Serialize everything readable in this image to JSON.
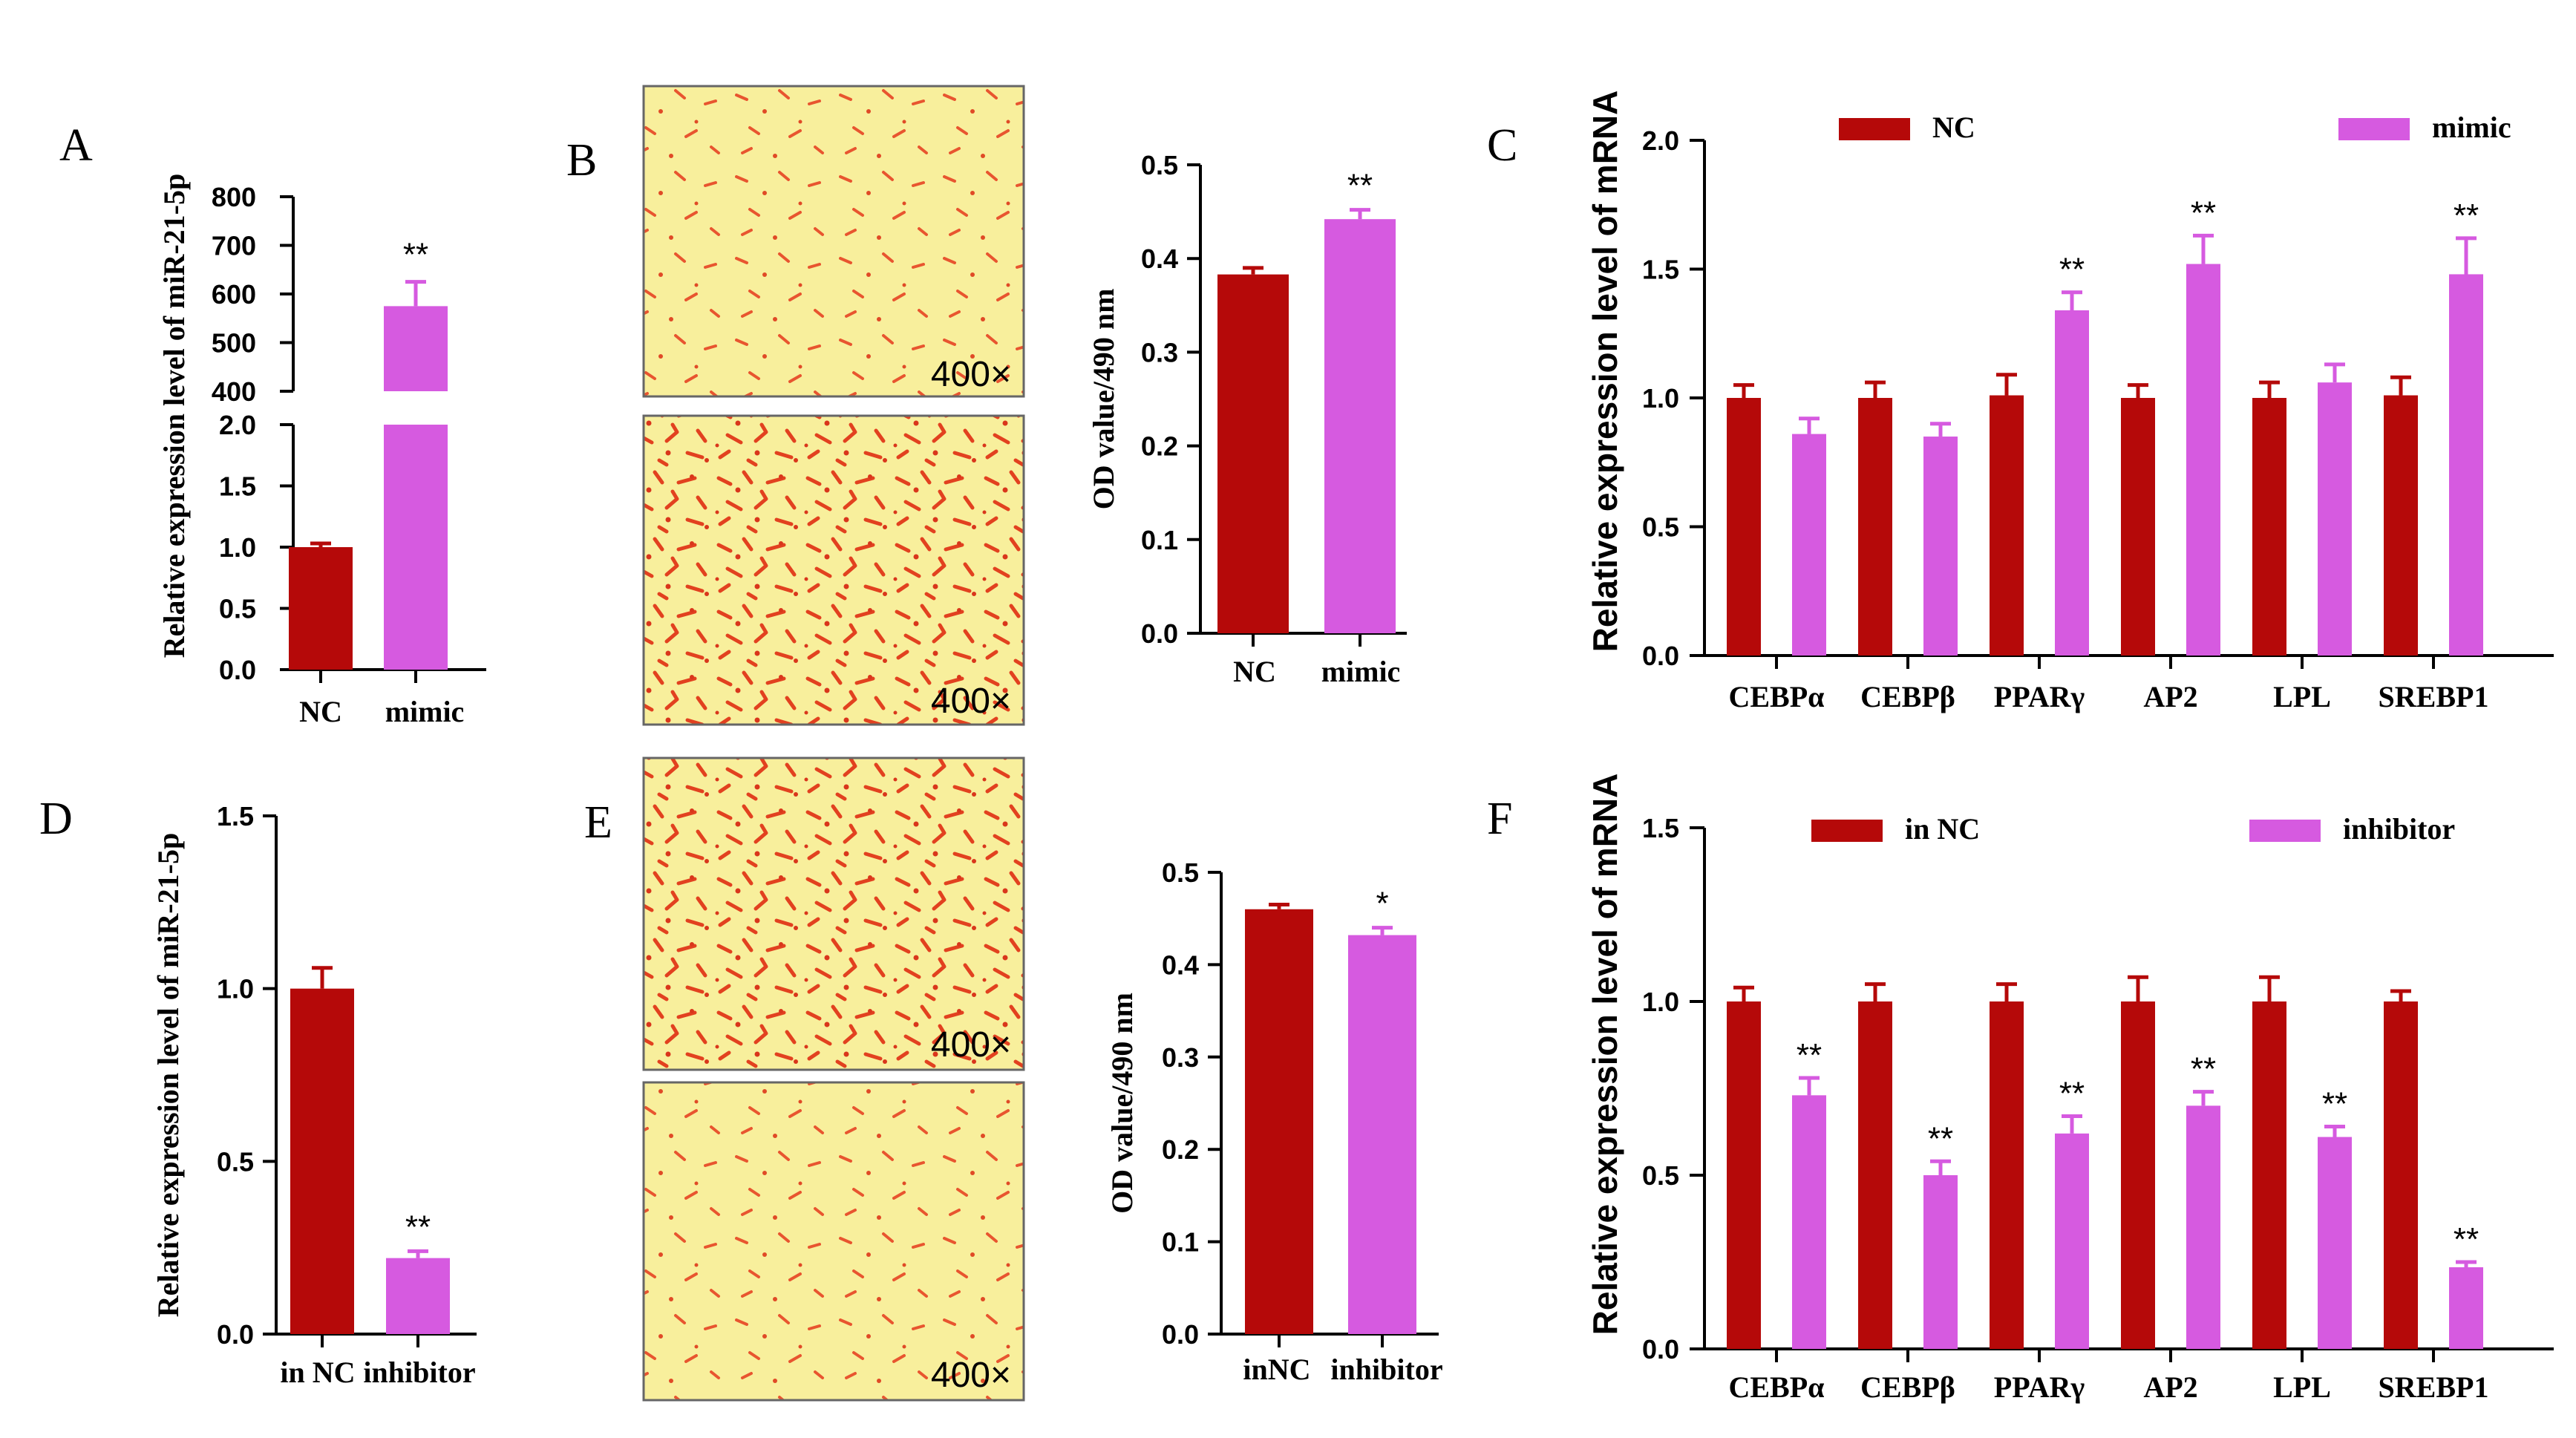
{
  "colors": {
    "nc": "#b50909",
    "treat": "#d65ae0",
    "stain_bg": "#f8ef9c",
    "stain_dot": "#e2411f"
  },
  "images": {
    "B_top": {
      "magnification": "400×",
      "density": 0.55
    },
    "B_bottom": {
      "magnification": "400×",
      "density": 1.0
    },
    "E_top": {
      "magnification": "400×",
      "density": 0.9
    },
    "E_bottom": {
      "magnification": "400×",
      "density": 0.6
    }
  },
  "chart_data": [
    {
      "id": "A",
      "letter": "A",
      "type": "bar",
      "title": "",
      "xlabel": "",
      "ylabel": "Relative expression level of miR-21-5p",
      "categories": [
        "NC",
        "mimic"
      ],
      "values": [
        1.0,
        575
      ],
      "errors": [
        0.03,
        50
      ],
      "significance": [
        "",
        "**"
      ],
      "broken_axis": true,
      "ylim_lower": [
        0,
        2.0
      ],
      "ylim_upper": [
        400,
        800
      ],
      "yticks_lower": [
        "0.0",
        "0.5",
        "1.0",
        "1.5",
        "2.0"
      ],
      "yticks_upper": [
        "400",
        "500",
        "600",
        "700",
        "800"
      ]
    },
    {
      "id": "B",
      "letter": "B",
      "type": "bar",
      "title": "",
      "xlabel": "",
      "ylabel": "OD value/490 nm",
      "categories": [
        "NC",
        "mimic"
      ],
      "values": [
        0.383,
        0.442
      ],
      "errors": [
        0.007,
        0.01
      ],
      "significance": [
        "",
        "**"
      ],
      "ylim": [
        0,
        0.5
      ],
      "yticks": [
        "0.0",
        "0.1",
        "0.2",
        "0.3",
        "0.4",
        "0.5"
      ]
    },
    {
      "id": "C",
      "letter": "C",
      "type": "bar",
      "title": "",
      "xlabel": "",
      "ylabel": "Relative expression level of mRNA",
      "categories": [
        "CEBPα",
        "CEBPβ",
        "PPARγ",
        "AP2",
        "LPL",
        "SREBP1"
      ],
      "series": [
        {
          "name": "NC",
          "values": [
            1.0,
            1.0,
            1.01,
            1.0,
            1.0,
            1.01
          ],
          "errors": [
            0.05,
            0.06,
            0.08,
            0.05,
            0.06,
            0.07
          ]
        },
        {
          "name": "mimic",
          "values": [
            0.86,
            0.85,
            1.34,
            1.52,
            1.06,
            1.48
          ],
          "errors": [
            0.06,
            0.05,
            0.07,
            0.11,
            0.07,
            0.14
          ]
        }
      ],
      "significance": [
        "",
        "",
        "**",
        "**",
        "",
        "**"
      ],
      "ylim": [
        0,
        2.0
      ],
      "yticks": [
        "0.0",
        "0.5",
        "1.0",
        "1.5",
        "2.0"
      ],
      "legend": "top"
    },
    {
      "id": "D",
      "letter": "D",
      "type": "bar",
      "title": "",
      "xlabel": "",
      "ylabel": "Relative expression level of miR-21-5p",
      "categories": [
        "in NC",
        "inhibitor"
      ],
      "values": [
        1.0,
        0.22
      ],
      "errors": [
        0.06,
        0.02
      ],
      "significance": [
        "",
        "**"
      ],
      "ylim": [
        0,
        1.5
      ],
      "yticks": [
        "0.0",
        "0.5",
        "1.0",
        "1.5"
      ]
    },
    {
      "id": "E",
      "letter": "E",
      "type": "bar",
      "title": "",
      "xlabel": "",
      "ylabel": "OD value/490 nm",
      "categories": [
        "inNC",
        "inhibitor"
      ],
      "values": [
        0.46,
        0.432
      ],
      "errors": [
        0.005,
        0.008
      ],
      "significance": [
        "",
        "*"
      ],
      "ylim": [
        0,
        0.5
      ],
      "yticks": [
        "0.0",
        "0.1",
        "0.2",
        "0.3",
        "0.4",
        "0.5"
      ]
    },
    {
      "id": "F",
      "letter": "F",
      "type": "bar",
      "title": "",
      "xlabel": "",
      "ylabel": "Relative expression level of mRNA",
      "categories": [
        "CEBPα",
        "CEBPβ",
        "PPARγ",
        "AP2",
        "LPL",
        "SREBP1"
      ],
      "series": [
        {
          "name": "in NC",
          "values": [
            1.0,
            1.0,
            1.0,
            1.0,
            1.0,
            1.0
          ],
          "errors": [
            0.04,
            0.05,
            0.05,
            0.07,
            0.07,
            0.03
          ]
        },
        {
          "name": "inhibitor",
          "values": [
            0.73,
            0.5,
            0.62,
            0.7,
            0.61,
            0.235
          ],
          "errors": [
            0.05,
            0.04,
            0.05,
            0.04,
            0.03,
            0.015
          ]
        }
      ],
      "significance": [
        "**",
        "**",
        "**",
        "**",
        "**",
        "**"
      ],
      "ylim": [
        0,
        1.5
      ],
      "yticks": [
        "0.0",
        "0.5",
        "1.0",
        "1.5"
      ],
      "legend": "top"
    }
  ]
}
